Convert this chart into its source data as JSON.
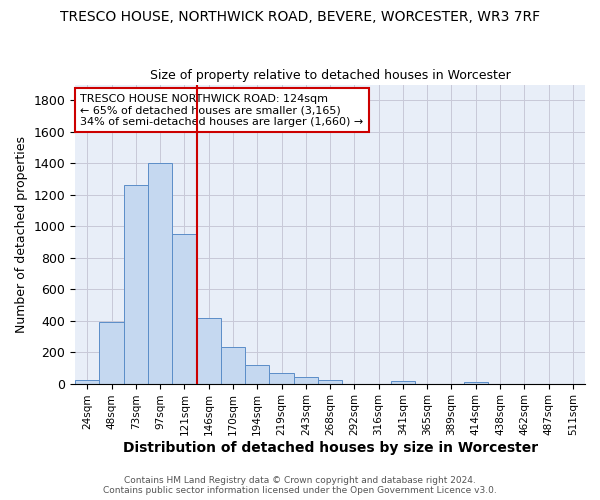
{
  "title": "TRESCO HOUSE, NORTHWICK ROAD, BEVERE, WORCESTER, WR3 7RF",
  "subtitle": "Size of property relative to detached houses in Worcester",
  "xlabel": "Distribution of detached houses by size in Worcester",
  "ylabel": "Number of detached properties",
  "bar_labels": [
    "24sqm",
    "48sqm",
    "73sqm",
    "97sqm",
    "121sqm",
    "146sqm",
    "170sqm",
    "194sqm",
    "219sqm",
    "243sqm",
    "268sqm",
    "292sqm",
    "316sqm",
    "341sqm",
    "365sqm",
    "389sqm",
    "414sqm",
    "438sqm",
    "462sqm",
    "487sqm",
    "511sqm"
  ],
  "bar_values": [
    25,
    390,
    1260,
    1400,
    950,
    415,
    235,
    120,
    65,
    42,
    20,
    0,
    0,
    15,
    0,
    0,
    12,
    0,
    0,
    0,
    0
  ],
  "bar_color": "#c5d8f0",
  "bar_edge_color": "#5b8dc8",
  "background_color": "#e8eef8",
  "grid_color": "#c8c8d8",
  "vline_color": "#cc0000",
  "annotation_text": "TRESCO HOUSE NORTHWICK ROAD: 124sqm\n← 65% of detached houses are smaller (3,165)\n34% of semi-detached houses are larger (1,660) →",
  "annotation_box_color": "#cc0000",
  "ylim": [
    0,
    1900
  ],
  "yticks": [
    0,
    200,
    400,
    600,
    800,
    1000,
    1200,
    1400,
    1600,
    1800
  ],
  "footer1": "Contains HM Land Registry data © Crown copyright and database right 2024.",
  "footer2": "Contains public sector information licensed under the Open Government Licence v3.0."
}
